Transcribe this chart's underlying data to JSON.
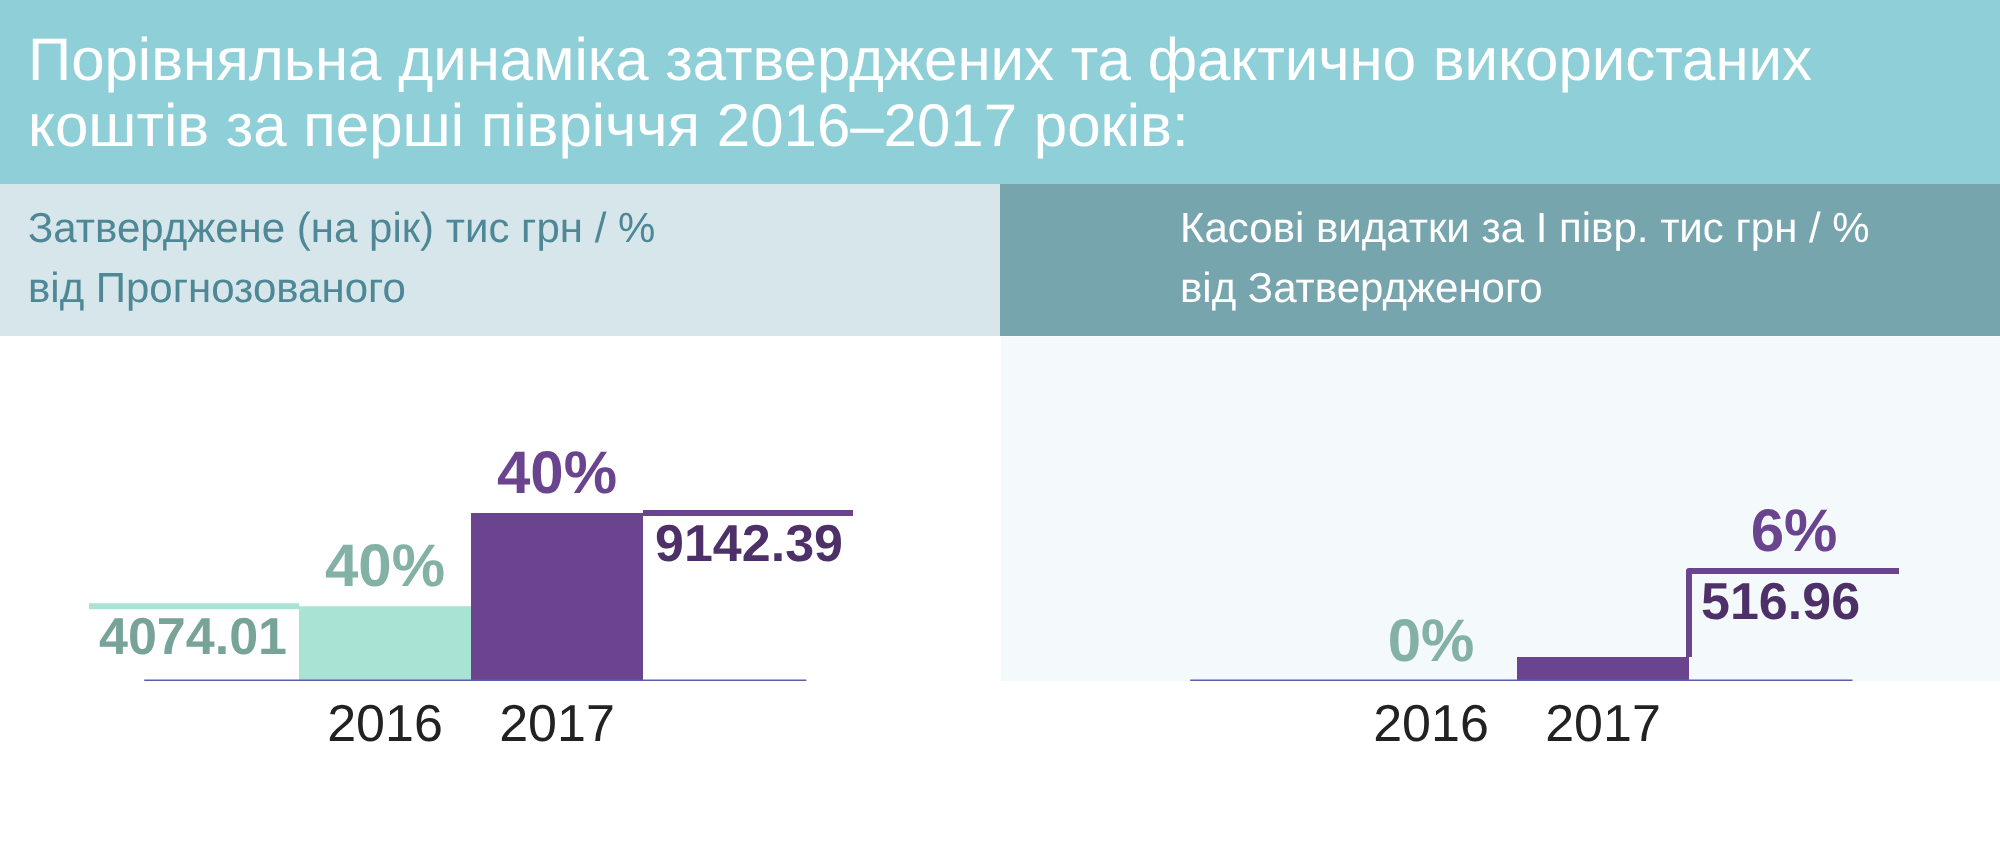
{
  "chart_data": [
    {
      "type": "bar",
      "title": "Порівняльна динаміка затверджених та фактично використаних коштів за перші півріччя 2016–2017 років:",
      "subtitle": "Затверджене (на рік) тис грн / % від Прогнозованого",
      "categories": [
        "2016",
        "2017"
      ],
      "values": [
        4074.01,
        9142.39
      ],
      "colors": [
        "#a8e3d4",
        "#6b4490"
      ],
      "value_labels": [
        "4074.01",
        "9142.39"
      ],
      "annotations": [
        {
          "text": "40%",
          "x": "2016",
          "y": 4074.01
        },
        {
          "text": "40%",
          "x": "2017",
          "y": 9142.39
        }
      ]
    },
    {
      "type": "bar",
      "subtitle": "Касові видатки за І півр. тис грн / % від Затвердженого",
      "categories": [
        "2016",
        "2017"
      ],
      "values": [
        0,
        516.96
      ],
      "colors": [
        "#a8e3d4",
        "#6b4490"
      ],
      "value_labels": [
        null,
        "516.96"
      ],
      "annotations": [
        {
          "text": "0%",
          "x": "2016",
          "y": 0
        },
        {
          "text": "6%",
          "x": "2017",
          "y": 516.96
        }
      ]
    }
  ]
}
